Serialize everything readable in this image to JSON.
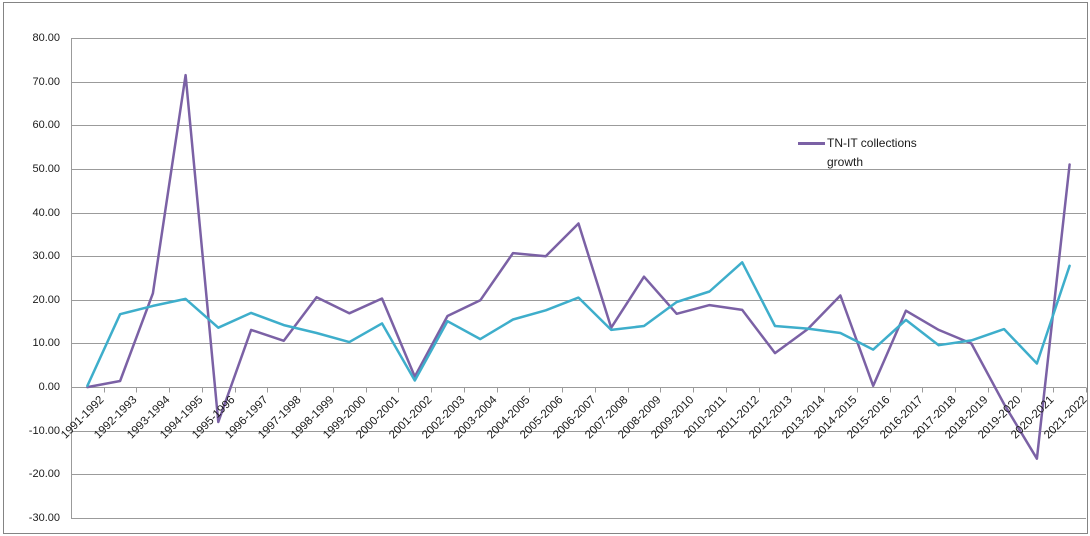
{
  "chart_data": {
    "type": "line",
    "title": "",
    "xlabel": "",
    "ylabel": "",
    "grid": true,
    "ylim": [
      -30,
      80
    ],
    "y_tick_step": 10,
    "y_tick_labels": [
      "80.00",
      "70.00",
      "60.00",
      "50.00",
      "40.00",
      "30.00",
      "20.00",
      "10.00",
      "0.00",
      "-10.00",
      "-20.00",
      "-30.00"
    ],
    "categories": [
      "1991-1992",
      "1992-1993",
      "1993-1994",
      "1994-1995",
      "1995-1996",
      "1996-1997",
      "1997-1998",
      "1998-1999",
      "1999-2000",
      "2000-2001",
      "2001-2002",
      "2002-2003",
      "2003-2004",
      "2004-2005",
      "2005-2006",
      "2006-2007",
      "2007-2008",
      "2008-2009",
      "2009-2010",
      "2010-2011",
      "2011-2012",
      "2012-2013",
      "2013-2014",
      "2014-2015",
      "2015-2016",
      "2016-2017",
      "2017-2018",
      "2018-2019",
      "2019-2020",
      "2020-2021",
      "2021-2022"
    ],
    "series": [
      {
        "name": "TN-IT collections growth",
        "color": "#7B61A5",
        "in_legend": true,
        "values": [
          0.0,
          1.4,
          21.5,
          71.5,
          -8.0,
          13.1,
          10.6,
          20.6,
          16.9,
          20.3,
          2.4,
          16.3,
          19.9,
          30.7,
          30.0,
          37.5,
          13.6,
          25.3,
          16.8,
          18.8,
          17.7,
          7.8,
          13.3,
          21.0,
          0.3,
          17.5,
          13.1,
          10.0,
          -3.9,
          -16.4,
          51.0
        ]
      },
      {
        "name": "",
        "color": "#3EAECB",
        "in_legend": false,
        "values": [
          0.3,
          16.7,
          18.6,
          20.2,
          13.6,
          17.0,
          14.2,
          12.4,
          10.3,
          14.6,
          1.5,
          15.1,
          11.0,
          15.5,
          17.6,
          20.5,
          13.1,
          14.0,
          19.5,
          21.9,
          28.6,
          14.0,
          13.4,
          12.4,
          8.6,
          15.4,
          9.6,
          10.7,
          13.3,
          5.4,
          27.8
        ]
      }
    ],
    "legend_position": "inside-right-upper"
  },
  "legend": {
    "line1": "TN-IT collections",
    "line2": "growth"
  },
  "colors": {
    "gridline": "#9b9b9b",
    "axis": "#9b9b9b",
    "frame_border": "#848484",
    "label_text": "#1a1a1a",
    "background": "#ffffff"
  }
}
